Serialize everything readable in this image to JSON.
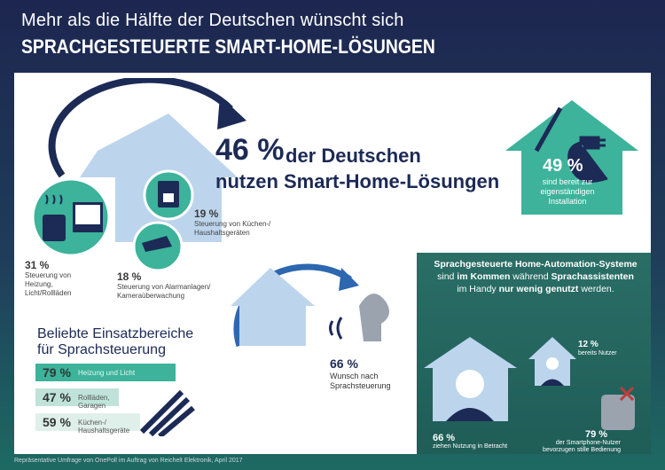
{
  "header": {
    "line1": "Mehr als die Hälfte der Deutschen wünscht sich",
    "line2": "SPRACHGESTEUERTE SMART-HOME-LÖSUNGEN"
  },
  "main": {
    "big_number": "46 %",
    "big_text_1": "der Deutschen",
    "big_text_2": "nutzen Smart-Home-Lösungen"
  },
  "stats": {
    "heizung": {
      "pct": "31 %",
      "label": "Steuerung von Heizung, Licht/Rollläden"
    },
    "kueche": {
      "pct": "19 %",
      "label": "Steuerung von Küchen-/ Haushaltsgeräten"
    },
    "alarm": {
      "pct": "18 %",
      "label": "Steuerung von Alarmanlagen/ Kameraüberwachung"
    },
    "installation": {
      "pct": "49 %",
      "label": "sind bereit zur eigenständigen Installation"
    },
    "wunsch": {
      "pct": "66 %",
      "label": "Wunsch nach Sprachsteuerung"
    }
  },
  "bars": {
    "title_1": "Beliebte Einsatzbereiche",
    "title_2": "für Sprachsteuerung",
    "items": [
      {
        "pct": "79 %",
        "label": "Heizung und Licht",
        "value": 79
      },
      {
        "pct": "47 %",
        "label": "Rollläden, Garagen",
        "value": 47
      },
      {
        "pct": "59 %",
        "label": "Küchen-/ Haushaltsgeräte",
        "value": 59
      }
    ]
  },
  "green_panel": {
    "title_a": "Sprachgesteuerte Home-Automation-Systeme",
    "title_b1": "sind ",
    "title_b2": "im Kommen",
    "title_b3": " während ",
    "title_b4": "Sprachassistenten",
    "title_c1": "im Handy ",
    "title_c2": "nur wenig genutzt",
    "title_c3": " werden.",
    "users": {
      "pct": "12 %",
      "label": "bereits Nutzer"
    },
    "consider": {
      "pct": "66 %",
      "label": "ziehen Nutzung in Betracht"
    },
    "silent": {
      "pct": "79 %",
      "label": "der Smartphone-Nutzer bevorzugen stille Bedienung"
    }
  },
  "colors": {
    "navy": "#1c2a56",
    "green": "#3cb39a",
    "light_blue": "#bcd5ec",
    "dark_green": "#25655d"
  },
  "footer": "Repräsentative Umfrage von OnePoll im Auftrag von Reichelt Elektronik, April 2017"
}
